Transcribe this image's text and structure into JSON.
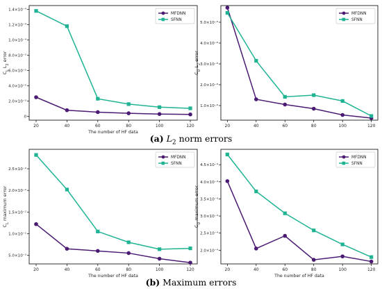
{
  "captions": {
    "a_label": "(a)",
    "a_math": "L",
    "a_sub": "2",
    "a_text": "norm errors",
    "b_label": "(b)",
    "b_text": "Maximum errors"
  },
  "chart_data": [
    {
      "type": "line",
      "xlabel": "The number of HF data",
      "ylabel": "C_L L_2 error",
      "x": [
        20,
        40,
        60,
        80,
        100,
        120
      ],
      "x_ticks": [
        "20",
        "40",
        "60",
        "80",
        "100",
        "120"
      ],
      "ylim": [
        -5e-06,
        0.000145
      ],
      "y_ticks": [
        0,
        2e-05,
        4e-05,
        6e-05,
        8e-05,
        0.0001,
        0.00012,
        0.00014
      ],
      "y_tick_labels": [
        "0",
        "2.0×10⁻⁵",
        "4.0×10⁻⁵",
        "6.0×10⁻⁵",
        "8.0×10⁻⁵",
        "1.0×10⁻⁴",
        "1.2×10⁻⁴",
        "1.4×10⁻⁴"
      ],
      "legend": "top-right",
      "series": [
        {
          "name": "MFDNN",
          "color": "#4b1a73",
          "marker": "circle",
          "values": [
            2.5e-05,
            8e-06,
            5.5e-06,
            4e-06,
            3e-06,
            2.5e-06
          ]
        },
        {
          "name": "SFNN",
          "color": "#1fb394",
          "marker": "square",
          "values": [
            0.000138,
            0.000118,
            2.3e-05,
            1.6e-05,
            1.2e-05,
            1.05e-05
          ]
        }
      ]
    },
    {
      "type": "line",
      "xlabel": "",
      "ylabel": "C_D L_2 error",
      "x": [
        20,
        40,
        60,
        80,
        100,
        120
      ],
      "x_ticks": [
        "20",
        "40",
        "60",
        "80",
        "100",
        "120"
      ],
      "ylim": [
        3e-07,
        5.8e-06
      ],
      "y_ticks": [
        1e-06,
        2e-06,
        3e-06,
        4e-06,
        5e-06
      ],
      "y_tick_labels": [
        "1.0×10⁻⁶",
        "2.0×10⁻⁶",
        "3.0×10⁻⁶",
        "4.0×10⁻⁶",
        "5.0×10⁻⁶"
      ],
      "legend": "top-right",
      "series": [
        {
          "name": "MFDNN",
          "color": "#4b1a73",
          "marker": "circle",
          "values": [
            5.7e-06,
            1.3e-06,
            1.05e-06,
            8.5e-07,
            5.5e-07,
            4e-07
          ]
        },
        {
          "name": "SFNN",
          "color": "#1fb394",
          "marker": "square",
          "values": [
            5.45e-06,
            3.15e-06,
            1.42e-06,
            1.5e-06,
            1.22e-06,
            5e-07
          ]
        }
      ]
    },
    {
      "type": "line",
      "xlabel": "The number of HF data",
      "ylabel": "C_L maximum error",
      "x": [
        20,
        40,
        60,
        80,
        100,
        120
      ],
      "x_ticks": [
        "20",
        "40",
        "60",
        "80",
        "100",
        "120"
      ],
      "ylim": [
        0.003,
        0.0295
      ],
      "y_ticks": [
        0.005,
        0.01,
        0.015,
        0.02,
        0.025
      ],
      "y_tick_labels": [
        "5.0×10⁻³",
        "1.0×10⁻²",
        "1.5×10⁻²",
        "2.0×10⁻²",
        "2.5×10⁻²"
      ],
      "legend": "top-right",
      "series": [
        {
          "name": "MFDNN",
          "color": "#4b1a73",
          "marker": "circle",
          "values": [
            0.0122,
            0.0065,
            0.006,
            0.0055,
            0.0042,
            0.0033
          ]
        },
        {
          "name": "SFNN",
          "color": "#1fb394",
          "marker": "square",
          "values": [
            0.0282,
            0.0202,
            0.0105,
            0.008,
            0.0064,
            0.0066
          ]
        }
      ]
    },
    {
      "type": "line",
      "xlabel": "The number of HF data",
      "ylabel": "C_D maximum error",
      "x": [
        20,
        40,
        60,
        80,
        100,
        120
      ],
      "x_ticks": [
        "20",
        "40",
        "60",
        "80",
        "100",
        "120"
      ],
      "ylim": [
        0.00016,
        0.000495
      ],
      "y_ticks": [
        0.0002,
        0.00025,
        0.0003,
        0.00035,
        0.0004,
        0.00045
      ],
      "y_tick_labels": [
        "2.0×10⁻⁴",
        "2.5×10⁻⁴",
        "3.0×10⁻⁴",
        "3.5×10⁻⁴",
        "4.0×10⁻⁴",
        "4.5×10⁻⁴"
      ],
      "legend": "top-right",
      "series": [
        {
          "name": "MFDNN",
          "color": "#4b1a73",
          "marker": "circle",
          "values": [
            0.000402,
            0.000205,
            0.000242,
            0.000172,
            0.000182,
            0.000167
          ]
        },
        {
          "name": "SFNN",
          "color": "#1fb394",
          "marker": "square",
          "values": [
            0.00048,
            0.000372,
            0.000308,
            0.000258,
            0.000217,
            0.00018
          ]
        }
      ]
    }
  ]
}
